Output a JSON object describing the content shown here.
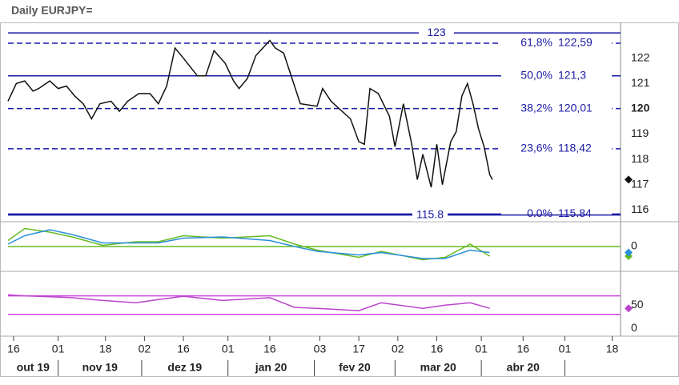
{
  "chart_data": [
    {
      "type": "line",
      "title": "Daily EURJPY=",
      "xlim": [
        "2019-10-14",
        "2020-05-21"
      ],
      "ylim": [
        115.6,
        123.35
      ],
      "yticks": [
        116,
        117,
        118,
        119,
        120,
        121,
        122
      ],
      "bold_tick": 120,
      "series": [
        {
          "color": "#111111",
          "x": [
            "2019-10-14",
            "2019-10-17",
            "2019-10-20",
            "2019-10-23",
            "2019-10-25",
            "2019-10-29",
            "2019-11-01",
            "2019-11-04",
            "2019-11-07",
            "2019-11-10",
            "2019-11-13",
            "2019-11-16",
            "2019-11-20",
            "2019-11-23",
            "2019-11-26",
            "2019-11-30",
            "2019-12-04",
            "2019-12-07",
            "2019-12-10",
            "2019-12-13",
            "2019-12-16",
            "2019-12-21",
            "2019-12-24",
            "2019-12-27",
            "2019-12-31",
            "2020-01-03",
            "2020-01-05",
            "2020-01-08",
            "2020-01-11",
            "2020-01-16",
            "2020-01-18",
            "2020-01-21",
            "2020-01-24",
            "2020-01-27",
            "2020-02-02",
            "2020-02-04",
            "2020-02-07",
            "2020-02-10",
            "2020-02-14",
            "2020-02-17",
            "2020-02-19",
            "2020-02-21",
            "2020-02-24",
            "2020-02-28",
            "2020-03-01",
            "2020-03-04",
            "2020-03-07",
            "2020-03-09",
            "2020-03-11",
            "2020-03-14",
            "2020-03-16",
            "2020-03-18",
            "2020-03-21",
            "2020-03-23",
            "2020-03-25",
            "2020-03-27",
            "2020-03-29",
            "2020-03-31",
            "2020-04-02",
            "2020-04-04",
            "2020-04-05"
          ],
          "values": [
            120.3,
            121.0,
            121.1,
            120.7,
            120.8,
            121.1,
            120.8,
            120.9,
            120.5,
            120.2,
            119.6,
            120.2,
            120.3,
            119.9,
            120.3,
            120.6,
            120.6,
            120.2,
            120.9,
            122.4,
            122.0,
            121.3,
            121.3,
            122.3,
            121.8,
            121.1,
            120.8,
            121.2,
            122.1,
            122.7,
            122.4,
            122.2,
            121.2,
            120.2,
            120.1,
            120.8,
            120.3,
            120.0,
            119.6,
            118.7,
            118.6,
            120.8,
            120.6,
            119.7,
            118.5,
            120.2,
            118.6,
            117.2,
            118.2,
            116.9,
            118.6,
            117.0,
            118.7,
            119.1,
            120.5,
            121.0,
            120.2,
            119.2,
            118.5,
            117.4,
            117.2
          ]
        }
      ],
      "levels": [
        {
          "value": 123,
          "label": "123",
          "style": "solid"
        },
        {
          "value": 122.59,
          "pct": "61,8%",
          "label": "122,59",
          "style": "dashed"
        },
        {
          "value": 121.3,
          "pct": "50,0%",
          "label": "121,3",
          "style": "solid"
        },
        {
          "value": 120.01,
          "pct": "38,2%",
          "label": "120,01",
          "style": "dashed"
        },
        {
          "value": 118.42,
          "pct": "23,6%",
          "label": "118,42",
          "style": "dashed"
        },
        {
          "value": 115.84,
          "pct": "0.0%",
          "label": "115.84",
          "style": "solid"
        },
        {
          "value": 115.8,
          "label": "115.8",
          "style": "solid"
        }
      ],
      "level_color": "#1a1aa6"
    },
    {
      "type": "line",
      "xlim": [
        "2019-10-14",
        "2020-05-21"
      ],
      "ylim": [
        -2,
        2
      ],
      "yticks": [
        0
      ],
      "baseline": 0,
      "baseline_color": "#66bb22",
      "series": [
        {
          "color": "#66bb22",
          "x": [
            "2019-10-14",
            "2019-10-20",
            "2019-10-29",
            "2019-11-06",
            "2019-11-17",
            "2019-11-29",
            "2019-12-07",
            "2019-12-16",
            "2019-12-30",
            "2020-01-16",
            "2020-01-25",
            "2020-02-02",
            "2020-02-17",
            "2020-02-25",
            "2020-03-11",
            "2020-03-19",
            "2020-03-28",
            "2020-04-04"
          ],
          "values": [
            0.5,
            1.5,
            1.2,
            0.8,
            0.1,
            0.4,
            0.4,
            0.9,
            0.7,
            0.9,
            0.2,
            -0.3,
            -0.9,
            -0.4,
            -1.1,
            -0.9,
            0.2,
            -0.8
          ]
        },
        {
          "color": "#2a8fd8",
          "x": [
            "2019-10-14",
            "2019-10-20",
            "2019-10-29",
            "2019-11-06",
            "2019-11-17",
            "2019-11-29",
            "2019-12-07",
            "2019-12-16",
            "2019-12-30",
            "2020-01-16",
            "2020-01-25",
            "2020-02-02",
            "2020-02-17",
            "2020-02-25",
            "2020-03-11",
            "2020-03-19",
            "2020-03-28",
            "2020-04-04"
          ],
          "values": [
            0.2,
            0.9,
            1.4,
            1.0,
            0.3,
            0.3,
            0.3,
            0.7,
            0.8,
            0.5,
            0.0,
            -0.4,
            -0.7,
            -0.5,
            -1.0,
            -1.0,
            -0.3,
            -0.5
          ]
        }
      ]
    },
    {
      "type": "line",
      "xlim": [
        "2019-10-14",
        "2020-05-21"
      ],
      "ylim": [
        -17,
        121
      ],
      "yticks": [
        50,
        0
      ],
      "bands": [
        70,
        30
      ],
      "band_color": "#cc44dd",
      "series": [
        {
          "color": "#bb44cc",
          "x": [
            "2019-10-14",
            "2019-10-20",
            "2019-10-29",
            "2019-11-06",
            "2019-11-17",
            "2019-11-29",
            "2019-12-07",
            "2019-12-16",
            "2019-12-30",
            "2020-01-16",
            "2020-01-25",
            "2020-02-02",
            "2020-02-17",
            "2020-02-25",
            "2020-03-11",
            "2020-03-19",
            "2020-03-28",
            "2020-04-04"
          ],
          "values": [
            72,
            70,
            68,
            66,
            60,
            55,
            62,
            69,
            60,
            66,
            45,
            43,
            38,
            55,
            43,
            50,
            55,
            43
          ]
        }
      ],
      "xticks": [
        {
          "value": "2019-10-16",
          "label": "16"
        },
        {
          "value": "2019-11-01",
          "label": "01"
        },
        {
          "value": "2019-11-18",
          "label": "18"
        },
        {
          "value": "2019-12-02",
          "label": "02"
        },
        {
          "value": "2019-12-16",
          "label": "16"
        },
        {
          "value": "2020-01-01",
          "label": "01"
        },
        {
          "value": "2020-01-16",
          "label": "16"
        },
        {
          "value": "2020-02-03",
          "label": "03"
        },
        {
          "value": "2020-02-17",
          "label": "17"
        },
        {
          "value": "2020-03-02",
          "label": "02"
        },
        {
          "value": "2020-03-16",
          "label": "16"
        },
        {
          "value": "2020-04-01",
          "label": "01"
        },
        {
          "value": "2020-04-16",
          "label": "16"
        },
        {
          "value": "2020-05-01",
          "label": "01"
        },
        {
          "value": "2020-05-18",
          "label": "18"
        }
      ],
      "months": [
        {
          "label": "out 19",
          "start": "2019-10-01"
        },
        {
          "label": "nov 19",
          "start": "2019-11-01"
        },
        {
          "label": "dez 19",
          "start": "2019-12-01"
        },
        {
          "label": "jan 20",
          "start": "2020-01-01"
        },
        {
          "label": "fev 20",
          "start": "2020-02-01"
        },
        {
          "label": "mar 20",
          "start": "2020-03-01"
        },
        {
          "label": "abr 20",
          "start": "2020-04-01"
        }
      ]
    }
  ]
}
